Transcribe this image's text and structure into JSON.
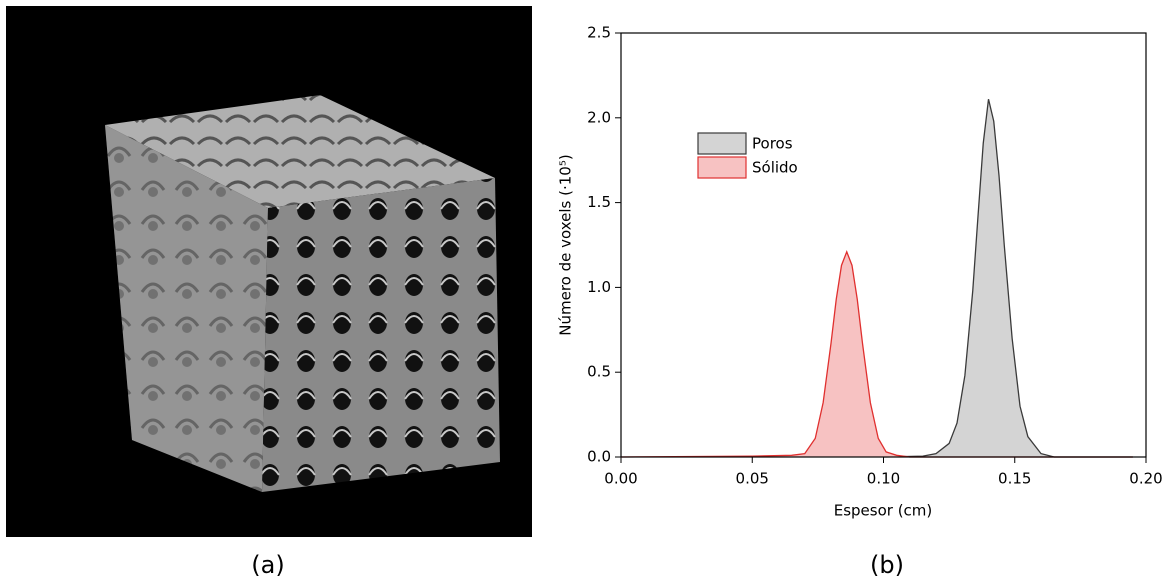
{
  "panels": {
    "a": "(a)",
    "b": "(b)"
  },
  "chart_data": {
    "type": "area",
    "x_label": "Espesor (cm)",
    "y_label": "Número de voxels (·10⁵)",
    "xlim": [
      0,
      0.2
    ],
    "ylim": [
      0,
      2.5
    ],
    "xticks": [
      {
        "value": 0,
        "label": "0.00"
      },
      {
        "value": 0.05,
        "label": "0.05"
      },
      {
        "value": 0.1,
        "label": "0.10"
      },
      {
        "value": 0.15,
        "label": "0.15"
      },
      {
        "value": 0.2,
        "label": "0.20"
      }
    ],
    "yticks": [
      {
        "value": 0,
        "label": "0.0"
      },
      {
        "value": 0.5,
        "label": "0.5"
      },
      {
        "value": 1,
        "label": "1.0"
      },
      {
        "value": 1.5,
        "label": "1.5"
      },
      {
        "value": 2,
        "label": "2.0"
      },
      {
        "value": 2.5,
        "label": "2.5"
      }
    ],
    "legend": "upper-left",
    "series": [
      {
        "name": "Poros",
        "color": "#3a3a3a",
        "fill": "#d4d4d4",
        "x": [
          0.1,
          0.115,
          0.12,
          0.125,
          0.128,
          0.131,
          0.134,
          0.136,
          0.138,
          0.14,
          0.142,
          0.144,
          0.146,
          0.149,
          0.152,
          0.155,
          0.16,
          0.165,
          0.195
        ],
        "values": [
          0,
          0.005,
          0.02,
          0.08,
          0.2,
          0.48,
          0.98,
          1.42,
          1.85,
          2.11,
          1.98,
          1.66,
          1.25,
          0.7,
          0.3,
          0.12,
          0.02,
          0,
          0
        ]
      },
      {
        "name": "Sólido",
        "color": "#e0302f",
        "fill": "#f7c2c2",
        "x": [
          0,
          0.05,
          0.065,
          0.07,
          0.074,
          0.077,
          0.08,
          0.082,
          0.084,
          0.086,
          0.088,
          0.09,
          0.092,
          0.095,
          0.098,
          0.101,
          0.105,
          0.11,
          0.195
        ],
        "values": [
          0,
          0.005,
          0.01,
          0.02,
          0.11,
          0.32,
          0.67,
          0.93,
          1.13,
          1.21,
          1.13,
          0.93,
          0.67,
          0.32,
          0.11,
          0.03,
          0.01,
          0,
          0
        ]
      }
    ]
  }
}
